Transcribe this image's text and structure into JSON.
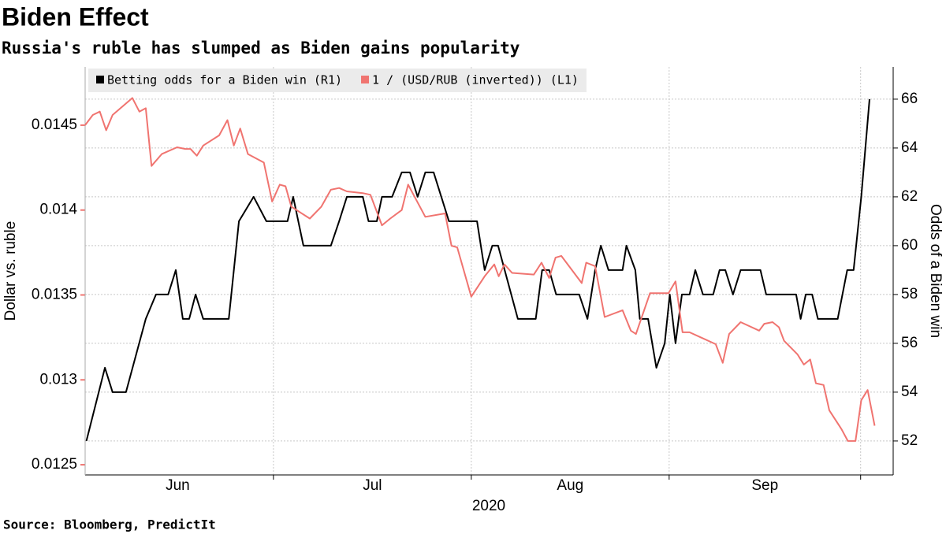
{
  "chart_data": {
    "type": "line",
    "title": "Biden Effect",
    "subtitle": "Russia's ruble has slumped as Biden gains popularity",
    "source": "Source: Bloomberg, PredictIt",
    "x_label": "2020",
    "month_labels": [
      "Jun",
      "Jul",
      "Aug",
      "Sep"
    ],
    "xlim": [
      0.5,
      127.1
    ],
    "xticks": [
      0,
      30,
      61,
      92,
      122
    ],
    "ylabel": "Dollar vs. ruble",
    "ylim": [
      0.01244,
      0.014843
    ],
    "yticks": [
      0.0125,
      0.013,
      0.0135,
      0.014,
      0.0145
    ],
    "y2label": "Odds of a Biden win",
    "y2lim": [
      50.61,
      67.32
    ],
    "y2ticks": [
      52,
      54,
      56,
      58,
      60,
      62,
      64,
      66
    ],
    "grid": true,
    "legend": "top-left",
    "series": [
      {
        "name": "Betting odds for a Biden win (R1)",
        "color": "#000000",
        "axis": "y2",
        "x": [
          0.7,
          3.6,
          4.8,
          6.9,
          10,
          11.6,
          13.5,
          14.7,
          15.8,
          16.8,
          17.8,
          19,
          23,
          24.6,
          26.9,
          28.9,
          32.2,
          33.1,
          34.7,
          39,
          40.3,
          41.5,
          44,
          44.9,
          46.2,
          47,
          48.6,
          50.1,
          51.4,
          52.6,
          53.8,
          55.1,
          56.3,
          57.5,
          61.9,
          63.1,
          64.3,
          65.2,
          68.3,
          71.1,
          72.1,
          73.2,
          74.3,
          77.9,
          79.2,
          80.4,
          81.3,
          82.5,
          84.7,
          85.3,
          86.7,
          87.4,
          88.7,
          90,
          91.3,
          92.1,
          93,
          94,
          95.2,
          96.1,
          97.3,
          98.9,
          99.9,
          100.8,
          102,
          103.2,
          106.3,
          107.2,
          111.9,
          112.6,
          113.4,
          114.4,
          115.3,
          118.4,
          119.9,
          120.9,
          122.1,
          123.4
        ],
        "values": [
          52,
          55,
          54,
          54,
          57,
          58,
          58,
          59,
          57,
          57,
          58,
          57,
          57,
          61,
          62,
          61,
          61,
          62,
          60,
          60,
          61,
          62,
          62,
          61,
          61,
          62,
          62,
          63,
          63,
          62,
          63,
          63,
          62,
          61,
          61,
          59,
          60,
          60,
          57,
          57,
          59,
          59,
          58,
          58,
          57,
          59,
          60,
          59,
          59,
          60,
          59,
          57,
          57,
          55,
          56,
          58,
          56,
          58,
          58,
          59,
          58,
          58,
          59,
          59,
          58,
          59,
          59,
          58,
          58,
          57,
          58,
          58,
          57,
          57,
          59,
          59,
          62,
          66
        ]
      },
      {
        "name": "1 / (USD/RUB (inverted)) (L1)",
        "color": "#f07470",
        "axis": "y",
        "x": [
          0.5,
          1.7,
          2.8,
          3.8,
          4.8,
          7.9,
          9,
          10,
          10.9,
          12.5,
          14.9,
          16.2,
          17,
          18,
          19,
          21.5,
          22.8,
          23.8,
          24.8,
          26,
          28.5,
          29.8,
          31,
          31.9,
          32.8,
          35.7,
          37.5,
          39,
          40.3,
          41.5,
          44,
          45.2,
          47,
          48.3,
          50.1,
          51.1,
          53.8,
          56.9,
          57.9,
          58.8,
          61,
          63.1,
          64.6,
          65.3,
          66.2,
          67.4,
          70.8,
          72,
          73.2,
          74.2,
          75.1,
          78.3,
          79,
          80.4,
          81.9,
          84.7,
          86,
          86.8,
          89,
          91.9,
          93,
          94.1,
          95.2,
          99.3,
          100.4,
          101.4,
          103.2,
          106.1,
          106.9,
          108.2,
          109.2,
          110,
          112.1,
          113.1,
          114.1,
          115,
          116.2,
          117.1,
          119,
          120,
          121.2,
          122.1,
          123.1,
          124.2
        ],
        "values": [
          0.0145,
          0.01456,
          0.01458,
          0.01447,
          0.01456,
          0.01466,
          0.01458,
          0.0146,
          0.01426,
          0.01433,
          0.01437,
          0.01436,
          0.01436,
          0.01432,
          0.01438,
          0.01444,
          0.01453,
          0.01438,
          0.01448,
          0.01433,
          0.01428,
          0.01405,
          0.01415,
          0.01414,
          0.01402,
          0.01395,
          0.01402,
          0.01412,
          0.01413,
          0.01411,
          0.0141,
          0.01409,
          0.01391,
          0.01395,
          0.014,
          0.01415,
          0.01396,
          0.01398,
          0.01379,
          0.01378,
          0.01349,
          0.01361,
          0.01368,
          0.01361,
          0.01368,
          0.01363,
          0.01362,
          0.01369,
          0.0136,
          0.01372,
          0.01373,
          0.01357,
          0.01369,
          0.01367,
          0.01337,
          0.01341,
          0.01329,
          0.01327,
          0.01351,
          0.01351,
          0.01358,
          0.01328,
          0.01328,
          0.01321,
          0.0131,
          0.01327,
          0.01334,
          0.01329,
          0.01333,
          0.01334,
          0.01331,
          0.01323,
          0.01315,
          0.01309,
          0.01312,
          0.01298,
          0.01297,
          0.01282,
          0.01271,
          0.01264,
          0.01264,
          0.01288,
          0.01294,
          0.01273
        ]
      }
    ]
  }
}
